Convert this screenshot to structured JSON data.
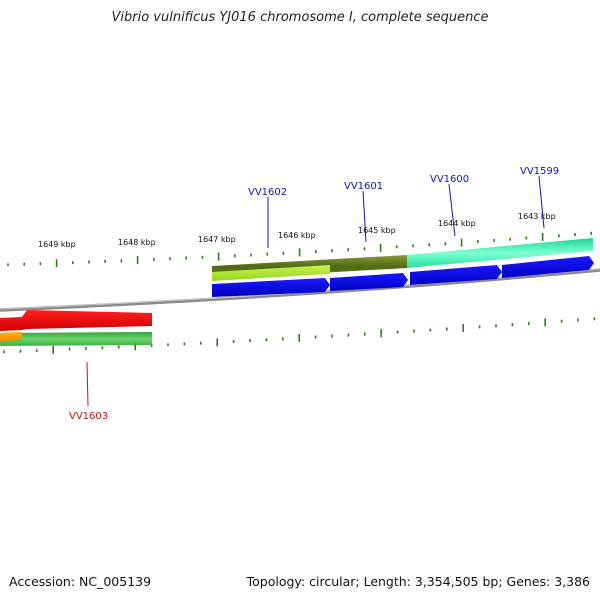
{
  "title": "Vibrio vulnificus YJ016 chromosome I, complete sequence",
  "footer": {
    "accession": "Accession: NC_005139",
    "stats": "Topology: circular; Length: 3,354,505 bp; Genes: 3,386"
  },
  "colors": {
    "backbone": "#7a7a7a",
    "tick": "#2e7d1a",
    "label_forward": "#1010c8",
    "label_reverse": "#cc1010"
  },
  "kbp_labels": [
    "1649 kbp",
    "1648 kbp",
    "1647 kbp",
    "1646 kbp",
    "1645 kbp",
    "1644 kbp",
    "1643 kbp"
  ],
  "genes": [
    {
      "label": "VV1602",
      "strand": "forward"
    },
    {
      "label": "VV1601",
      "strand": "forward"
    },
    {
      "label": "VV1600",
      "strand": "forward"
    },
    {
      "label": "VV1599",
      "strand": "forward"
    },
    {
      "label": "VV1603",
      "strand": "reverse"
    }
  ]
}
